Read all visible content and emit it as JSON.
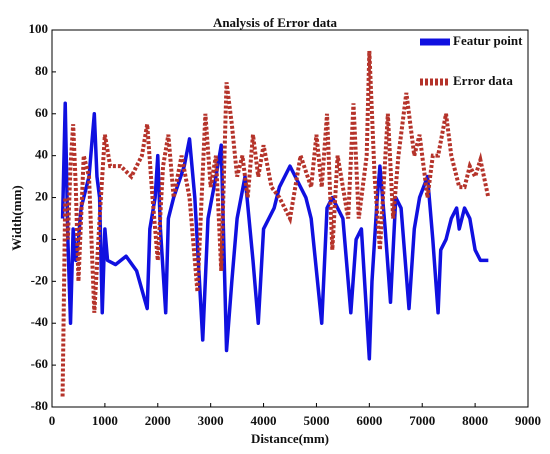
{
  "chart_data": {
    "type": "line",
    "title": "Analysis of Error data",
    "xlabel": "Distance(mm)",
    "ylabel": "Width(mm)",
    "xlim": [
      0,
      9000
    ],
    "xticks": [
      0,
      1000,
      2000,
      3000,
      4000,
      5000,
      6000,
      7000,
      8000,
      9000
    ],
    "ylim": [
      -80,
      100
    ],
    "yticks": [
      -80,
      -60,
      -40,
      -20,
      0,
      20,
      40,
      60,
      80,
      100
    ],
    "legend": "upper right",
    "series": [
      {
        "name": "Featur point",
        "color": "#1010e0",
        "style": "solid",
        "x": [
          200,
          250,
          300,
          350,
          400,
          450,
          500,
          550,
          600,
          700,
          800,
          850,
          900,
          950,
          1000,
          1050,
          1200,
          1400,
          1600,
          1800,
          1850,
          1950,
          2000,
          2050,
          2150,
          2200,
          2300,
          2500,
          2600,
          2700,
          2850,
          2950,
          3100,
          3200,
          3300,
          3400,
          3500,
          3650,
          3800,
          3900,
          4000,
          4200,
          4300,
          4500,
          4600,
          4800,
          4900,
          5100,
          5200,
          5300,
          5500,
          5650,
          5750,
          5850,
          6000,
          6050,
          6150,
          6200,
          6300,
          6400,
          6500,
          6600,
          6750,
          6850,
          6950,
          7100,
          7200,
          7300,
          7350,
          7450,
          7550,
          7650,
          7700,
          7800,
          7900,
          8000,
          8100,
          8250
        ],
        "values": [
          10,
          65,
          0,
          -40,
          5,
          -10,
          0,
          15,
          20,
          30,
          60,
          30,
          20,
          -35,
          5,
          -10,
          -12,
          -8,
          -15,
          -33,
          5,
          20,
          40,
          5,
          -35,
          10,
          20,
          35,
          48,
          20,
          -48,
          10,
          30,
          45,
          -53,
          -20,
          10,
          30,
          -10,
          -40,
          5,
          15,
          25,
          35,
          30,
          20,
          10,
          -40,
          15,
          20,
          10,
          -35,
          0,
          5,
          -57,
          -20,
          20,
          35,
          5,
          -30,
          20,
          15,
          -33,
          5,
          20,
          30,
          0,
          -35,
          -5,
          0,
          10,
          15,
          5,
          15,
          10,
          -5,
          -10,
          -10
        ]
      },
      {
        "name": "Error data",
        "color": "#b5332a",
        "style": "dotted",
        "x": [
          200,
          250,
          300,
          350,
          400,
          450,
          500,
          600,
          700,
          800,
          900,
          1000,
          1100,
          1300,
          1500,
          1700,
          1800,
          1900,
          2000,
          2100,
          2200,
          2300,
          2450,
          2600,
          2750,
          2900,
          3000,
          3100,
          3200,
          3300,
          3400,
          3500,
          3600,
          3700,
          3800,
          3900,
          4000,
          4150,
          4300,
          4500,
          4700,
          4900,
          5000,
          5100,
          5200,
          5300,
          5400,
          5600,
          5700,
          5800,
          5950,
          6000,
          6100,
          6200,
          6350,
          6450,
          6550,
          6700,
          6850,
          6950,
          7100,
          7200,
          7300,
          7450,
          7550,
          7700,
          7800,
          7900,
          8000,
          8100,
          8250
        ],
        "values": [
          -75,
          20,
          0,
          35,
          55,
          25,
          -20,
          40,
          30,
          -35,
          10,
          50,
          35,
          35,
          30,
          40,
          55,
          20,
          -10,
          35,
          50,
          20,
          40,
          20,
          -25,
          60,
          25,
          40,
          -15,
          75,
          55,
          30,
          40,
          20,
          50,
          30,
          45,
          25,
          20,
          10,
          40,
          25,
          50,
          25,
          60,
          -5,
          40,
          10,
          65,
          10,
          40,
          90,
          30,
          -5,
          60,
          10,
          40,
          70,
          40,
          50,
          20,
          40,
          40,
          60,
          40,
          25,
          25,
          35,
          30,
          38,
          20
        ]
      }
    ]
  }
}
